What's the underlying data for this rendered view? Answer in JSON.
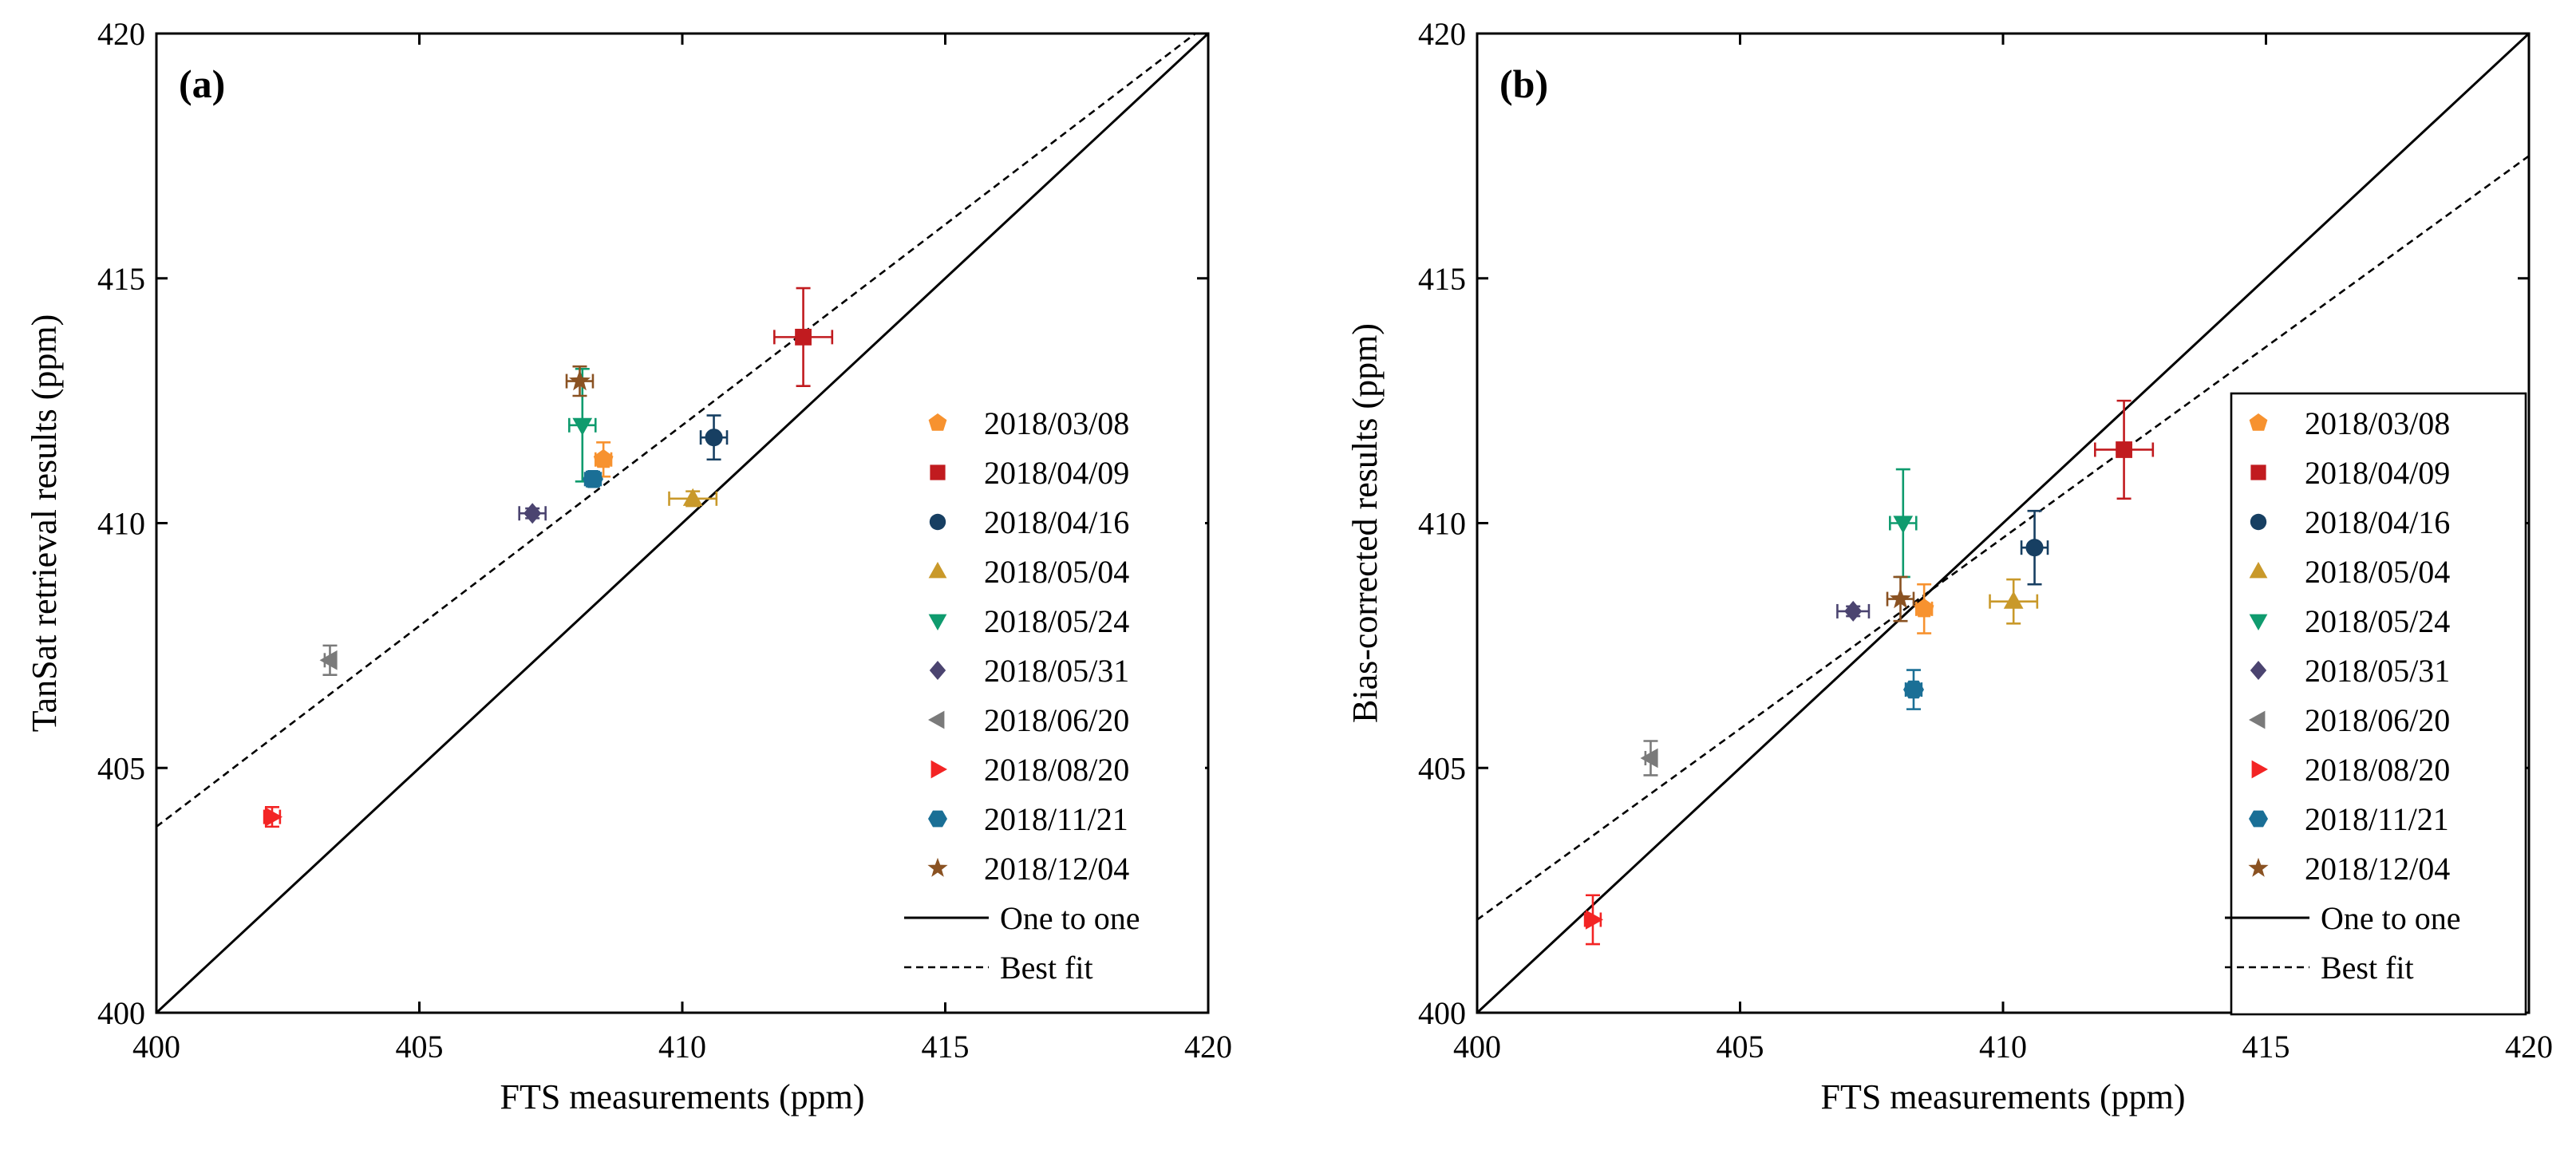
{
  "colors": {
    "2018/03/08": "#f7922f",
    "2018/04/09": "#c11b1f",
    "2018/04/16": "#173f62",
    "2018/05/04": "#c9992a",
    "2018/05/24": "#0f9b6e",
    "2018/05/31": "#4b4470",
    "2018/06/20": "#7a7a7a",
    "2018/08/20": "#f32424",
    "2018/11/21": "#1a6f96",
    "2018/12/04": "#8a5222"
  },
  "chart_data": [
    {
      "type": "scatter",
      "panel_label": "(a)",
      "xlabel": "FTS measurements (ppm)",
      "ylabel": "TanSat retrieval results (ppm)",
      "xlim": [
        400,
        420
      ],
      "ylim": [
        400,
        420
      ],
      "xticks": [
        "400",
        "405",
        "410",
        "415",
        "420"
      ],
      "yticks": [
        "400",
        "405",
        "410",
        "415",
        "420"
      ],
      "legend_position": "right",
      "legend_box": false,
      "series": [
        {
          "name": "2018/03/08",
          "marker": "pentagon",
          "x": 408.5,
          "y": 411.3,
          "xerr": 0.15,
          "yerr": 0.35
        },
        {
          "name": "2018/04/09",
          "marker": "square",
          "x": 412.3,
          "y": 413.8,
          "xerr": 0.55,
          "yerr": 1.0
        },
        {
          "name": "2018/04/16",
          "marker": "circle",
          "x": 410.6,
          "y": 411.75,
          "xerr": 0.25,
          "yerr": 0.45
        },
        {
          "name": "2018/05/04",
          "marker": "triangle-up",
          "x": 410.2,
          "y": 410.5,
          "xerr": 0.45,
          "yerr": 0.15
        },
        {
          "name": "2018/05/24",
          "marker": "triangle-down",
          "x": 408.1,
          "y": 412.0,
          "xerr": 0.25,
          "yerr": 1.15
        },
        {
          "name": "2018/05/31",
          "marker": "diamond",
          "x": 407.15,
          "y": 410.2,
          "xerr": 0.25,
          "yerr": 0.1
        },
        {
          "name": "2018/06/20",
          "marker": "triangle-left",
          "x": 403.3,
          "y": 407.2,
          "xerr": 0.1,
          "yerr": 0.3
        },
        {
          "name": "2018/08/20",
          "marker": "triangle-right",
          "x": 402.2,
          "y": 404.0,
          "xerr": 0.15,
          "yerr": 0.2
        },
        {
          "name": "2018/11/21",
          "marker": "hexagon",
          "x": 408.3,
          "y": 410.9,
          "xerr": 0.15,
          "yerr": 0.15
        },
        {
          "name": "2018/12/04",
          "marker": "star",
          "x": 408.05,
          "y": 412.9,
          "xerr": 0.25,
          "yerr": 0.3
        }
      ],
      "lines": [
        {
          "name": "One to one",
          "style": "solid",
          "x": [
            400,
            420
          ],
          "y": [
            400,
            420
          ]
        },
        {
          "name": "Best fit",
          "style": "dashed",
          "x": [
            400,
            420
          ],
          "y": [
            403.8,
            420.2
          ]
        }
      ]
    },
    {
      "type": "scatter",
      "panel_label": "(b)",
      "xlabel": "FTS measurements (ppm)",
      "ylabel": "Bias-corrected results (ppm)",
      "xlim": [
        400,
        420
      ],
      "ylim": [
        400,
        420
      ],
      "xticks": [
        "400",
        "405",
        "410",
        "415",
        "420"
      ],
      "yticks": [
        "400",
        "405",
        "410",
        "415",
        "420"
      ],
      "legend_position": "right",
      "legend_box": true,
      "series": [
        {
          "name": "2018/03/08",
          "marker": "pentagon",
          "x": 408.5,
          "y": 408.25,
          "xerr": 0.15,
          "yerr": 0.5
        },
        {
          "name": "2018/04/09",
          "marker": "square",
          "x": 412.3,
          "y": 411.5,
          "xerr": 0.55,
          "yerr": 1.0
        },
        {
          "name": "2018/04/16",
          "marker": "circle",
          "x": 410.6,
          "y": 409.5,
          "xerr": 0.25,
          "yerr": 0.75
        },
        {
          "name": "2018/05/04",
          "marker": "triangle-up",
          "x": 410.2,
          "y": 408.4,
          "xerr": 0.45,
          "yerr": 0.45
        },
        {
          "name": "2018/05/24",
          "marker": "triangle-down",
          "x": 408.1,
          "y": 410.0,
          "xerr": 0.25,
          "yerr": 1.1
        },
        {
          "name": "2018/05/31",
          "marker": "diamond",
          "x": 407.15,
          "y": 408.2,
          "xerr": 0.3,
          "yerr": 0.1
        },
        {
          "name": "2018/06/20",
          "marker": "triangle-left",
          "x": 403.3,
          "y": 405.2,
          "xerr": 0.1,
          "yerr": 0.35
        },
        {
          "name": "2018/08/20",
          "marker": "triangle-right",
          "x": 402.2,
          "y": 401.9,
          "xerr": 0.15,
          "yerr": 0.5
        },
        {
          "name": "2018/11/21",
          "marker": "hexagon",
          "x": 408.3,
          "y": 406.6,
          "xerr": 0.15,
          "yerr": 0.4
        },
        {
          "name": "2018/12/04",
          "marker": "star",
          "x": 408.05,
          "y": 408.45,
          "xerr": 0.25,
          "yerr": 0.45
        }
      ],
      "lines": [
        {
          "name": "One to one",
          "style": "solid",
          "x": [
            400,
            420
          ],
          "y": [
            400,
            420
          ]
        },
        {
          "name": "Best fit",
          "style": "dashed",
          "x": [
            400,
            420
          ],
          "y": [
            401.9,
            417.5
          ]
        }
      ]
    }
  ]
}
